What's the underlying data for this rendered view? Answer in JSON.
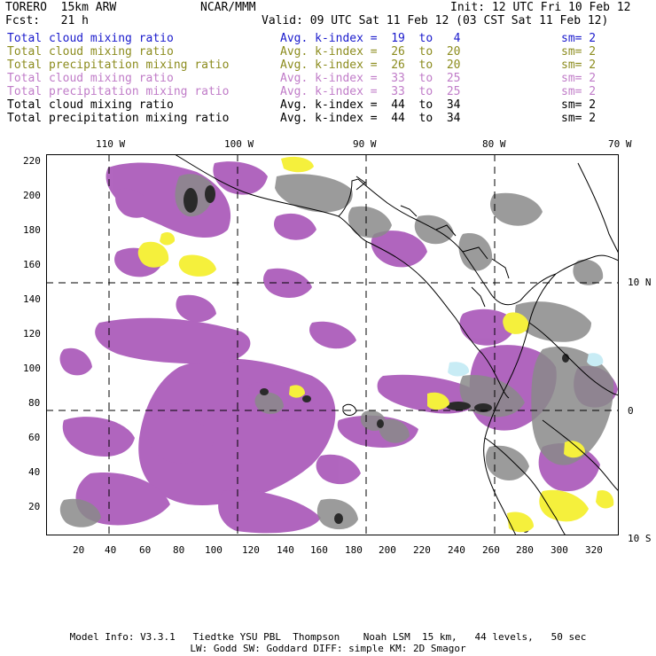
{
  "header": {
    "model": "TORERO  15km ARW",
    "org": "NCAR/MMM",
    "init": "Init: 12 UTC Fri 10 Feb 12",
    "fcst": "Fcst:   21 h",
    "valid": "Valid: 09 UTC Sat 11 Feb 12 (03 CST Sat 11 Feb 12)"
  },
  "legend": [
    {
      "field": "Total cloud mixing ratio",
      "kidx": "Avg. k-index =  19  to   4",
      "sm": "sm= 2",
      "color": "#1a1acc"
    },
    {
      "field": "Total cloud mixing ratio",
      "kidx": "Avg. k-index =  26  to  20",
      "sm": "sm= 2",
      "color": "#8c8c1e"
    },
    {
      "field": "Total precipitation mixing ratio",
      "kidx": "Avg. k-index =  26  to  20",
      "sm": "sm= 2",
      "color": "#8c8c1e"
    },
    {
      "field": "Total cloud mixing ratio",
      "kidx": "Avg. k-index =  33  to  25",
      "sm": "sm= 2",
      "color": "#c07cc8"
    },
    {
      "field": "Total precipitation mixing ratio",
      "kidx": "Avg. k-index =  33  to  25",
      "sm": "sm= 2",
      "color": "#c07cc8"
    },
    {
      "field": "Total cloud mixing ratio",
      "kidx": "Avg. k-index =  44  to  34",
      "sm": "sm= 2",
      "color": "#000000"
    },
    {
      "field": "Total precipitation mixing ratio",
      "kidx": "Avg. k-index =  44  to  34",
      "sm": "sm= 2",
      "color": "#000000"
    }
  ],
  "axes": {
    "lon_labels": [
      "110 W",
      "100 W",
      "90 W",
      "80 W",
      "70 W"
    ],
    "lat_labels": [
      "10 N",
      "0",
      "10 S"
    ],
    "x_ticks": [
      "20",
      "40",
      "60",
      "80",
      "100",
      "120",
      "140",
      "160",
      "180",
      "200",
      "220",
      "240",
      "260",
      "280",
      "300",
      "320"
    ],
    "y_ticks": [
      "220",
      "200",
      "180",
      "160",
      "140",
      "120",
      "100",
      "80",
      "60",
      "40",
      "20"
    ]
  },
  "colors": {
    "purple": "#a855b8",
    "gray": "#8a8a8a",
    "dark": "#2a2a2a",
    "yellow": "#f5f03c",
    "lightblue": "#c8ecf5"
  },
  "footer": {
    "line1": "Model Info: V3.3.1   Tiedtke YSU PBL  Thompson    Noah LSM  15 km,   44 levels,   50 sec",
    "line2": "LW: Godd SW: Goddard DIFF: simple KM: 2D Smagor"
  }
}
